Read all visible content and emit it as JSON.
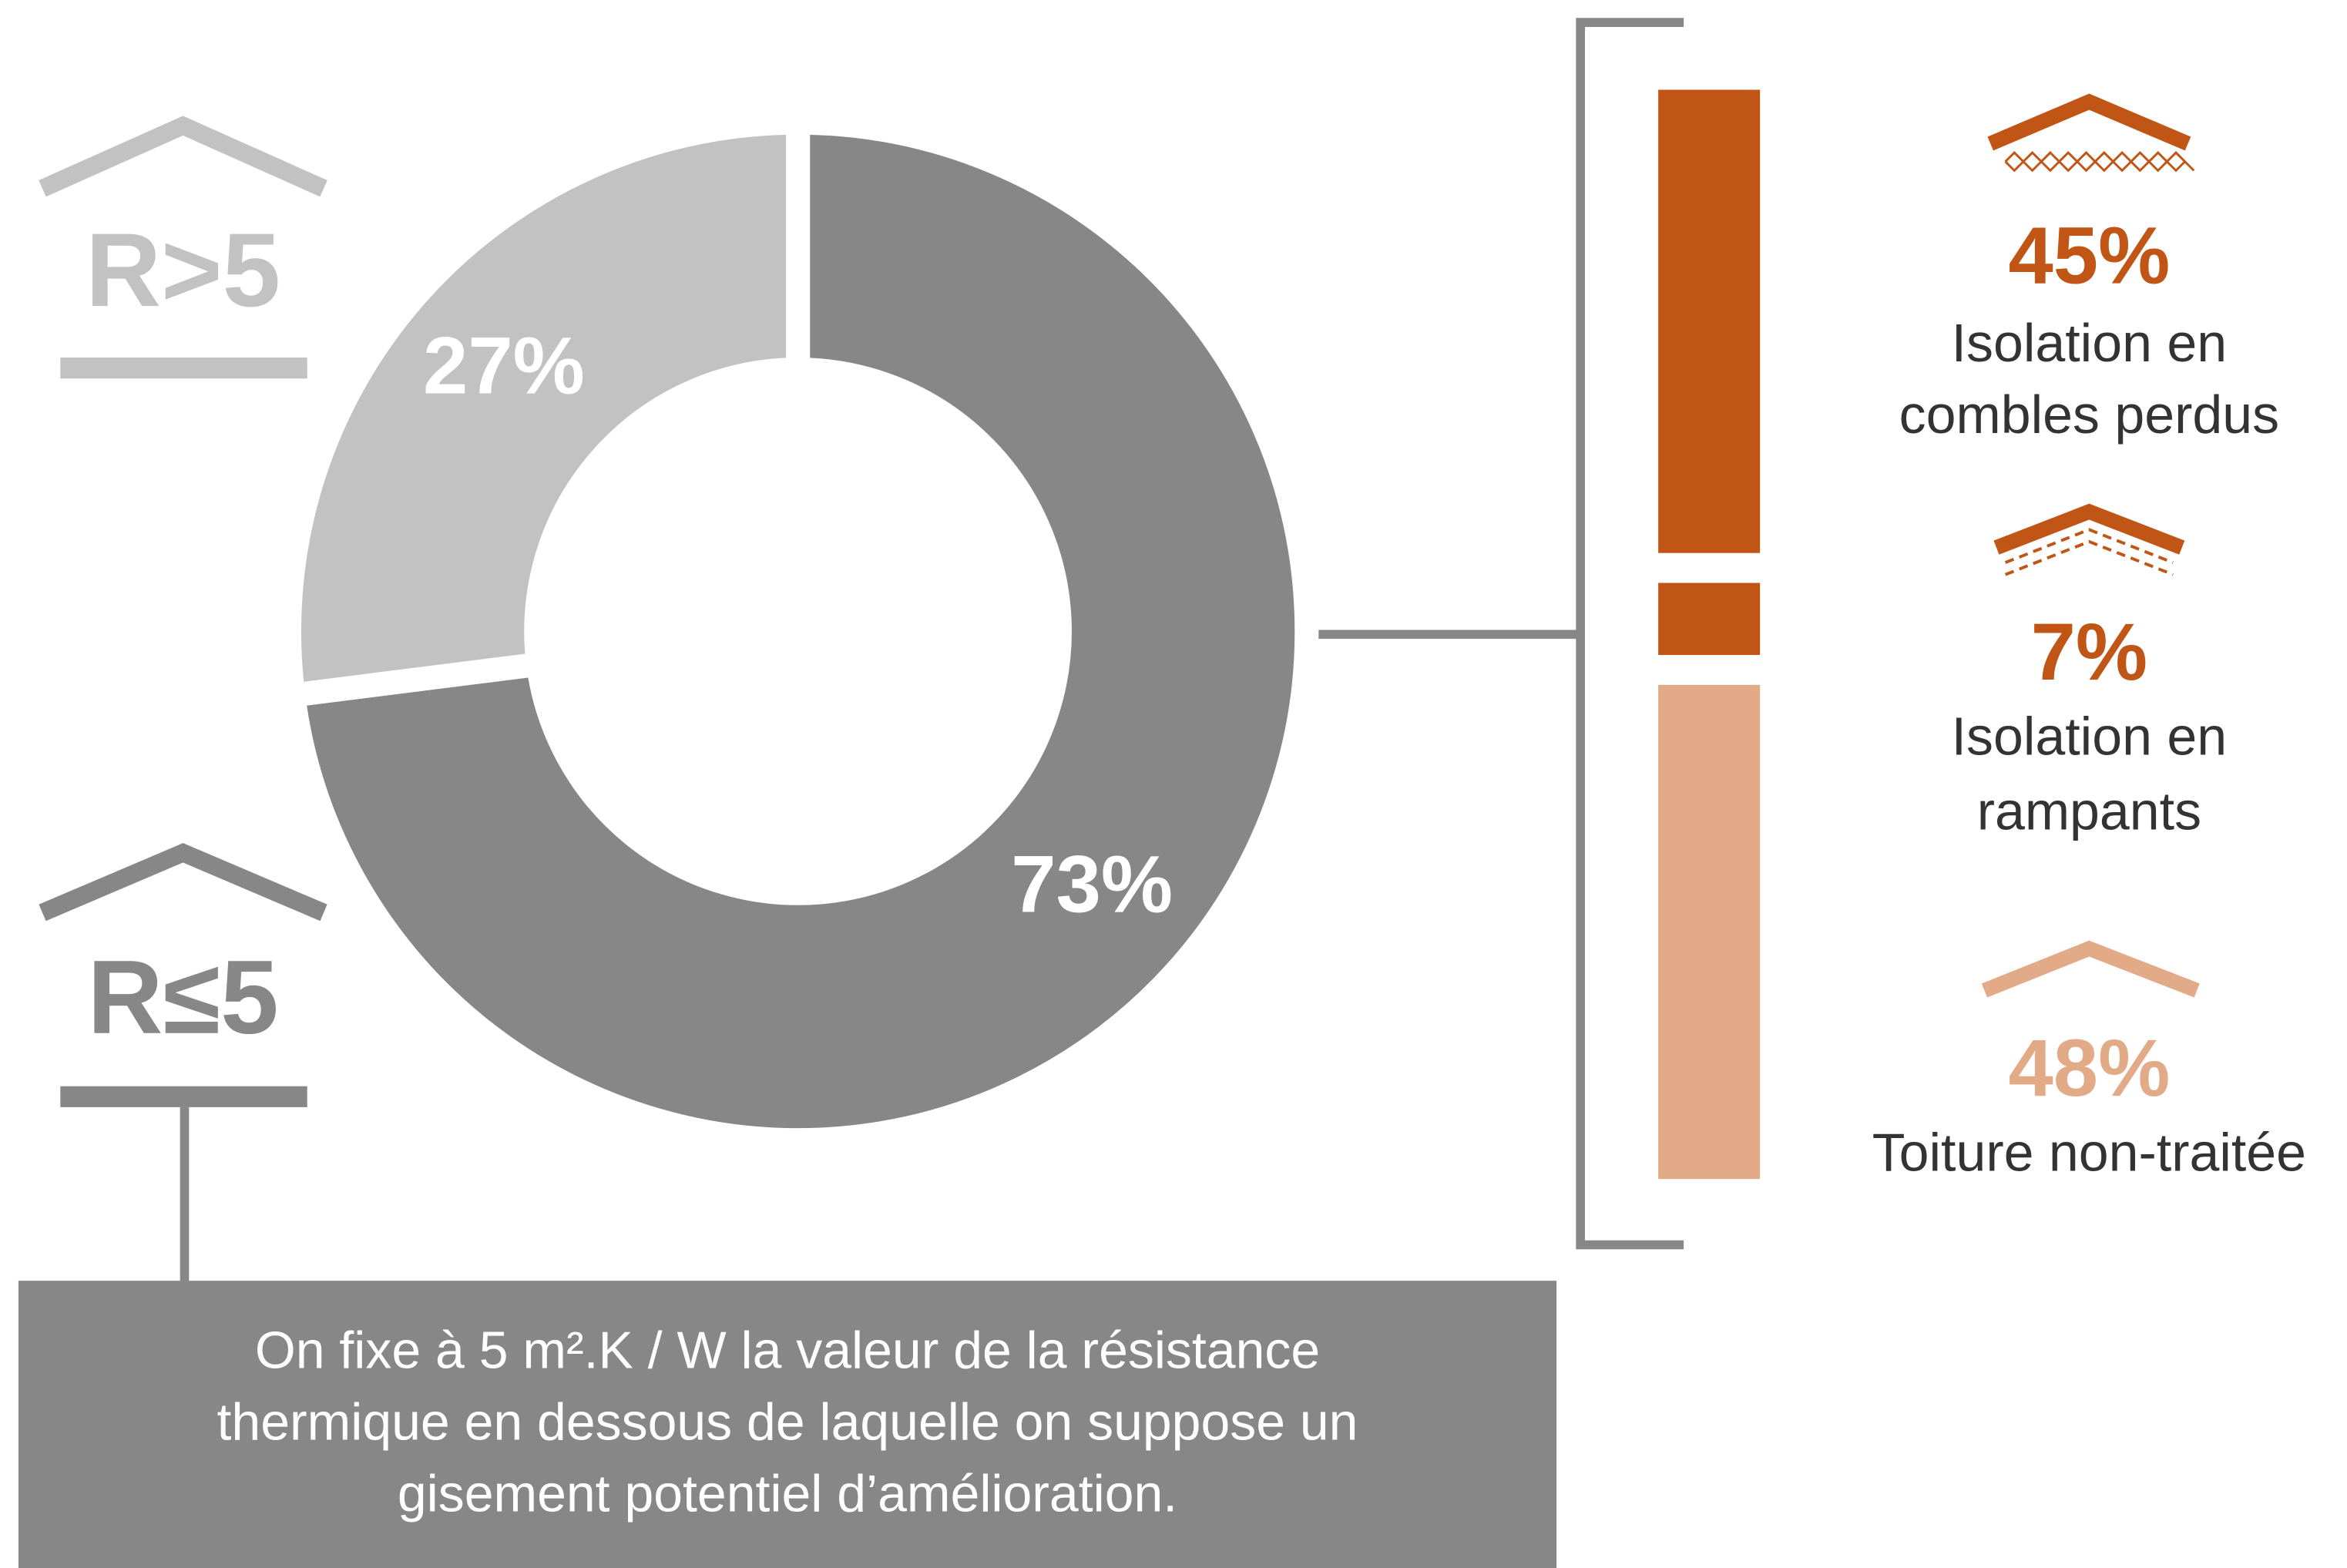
{
  "chart_data": [
    {
      "type": "donut",
      "categories": [
        "R≤5",
        "R>5"
      ],
      "values": [
        73,
        27
      ],
      "value_labels": [
        "73%",
        "27%"
      ],
      "colors": [
        "#878787",
        "#c2c2c2"
      ]
    },
    {
      "type": "stacked-bar",
      "categories": [
        [
          "Isolation en",
          "combles perdus"
        ],
        [
          "Isolation en",
          "rampants"
        ],
        [
          "Toiture non-traitée"
        ]
      ],
      "values": [
        45,
        7,
        48
      ],
      "value_labels": [
        "45%",
        "7%",
        "48%"
      ],
      "colors": [
        "#c15515",
        "#c15515",
        "#e3aa88"
      ]
    }
  ],
  "note": [
    "On fixe à 5 m².K / W  la valeur de la résistance",
    "thermique en dessous de laquelle on suppose un",
    "gisement potentiel d’amélioration."
  ]
}
